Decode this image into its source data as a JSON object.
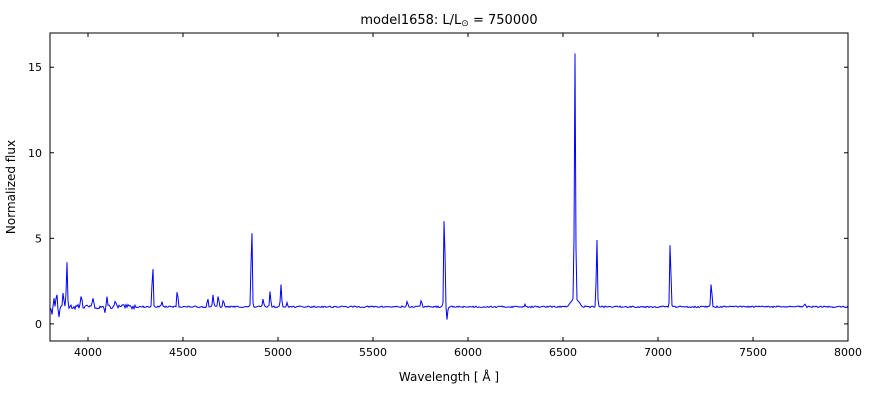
{
  "title": {
    "prefix": "model1658: L/L",
    "sub": "⊙",
    "suffix": " = 750000"
  },
  "chart_data": {
    "type": "line",
    "title": "model1658: L/L⊙ = 750000",
    "xlabel": "Wavelength [ Å ]",
    "ylabel": "Normalized flux",
    "xlim": [
      3800,
      8000
    ],
    "ylim": [
      -1,
      17
    ],
    "xticks": [
      4000,
      4500,
      5000,
      5500,
      6000,
      6500,
      7000,
      7500,
      8000
    ],
    "yticks": [
      0,
      5,
      10,
      15
    ],
    "line_color": "#0000ff",
    "grid": false,
    "legend": "none",
    "continuum": 1.0,
    "default_sigma": 3,
    "noise": {
      "seed": 13,
      "base_amplitude": 0.045,
      "blue_amplitude": 0.13,
      "blue_cutoff": 4250
    },
    "emission_lines": [
      {
        "wl": 3820,
        "peak": 0.5
      },
      {
        "wl": 3835,
        "peak": 0.7
      },
      {
        "wl": 3869,
        "peak": 0.8
      },
      {
        "wl": 3889,
        "peak": 2.6
      },
      {
        "wl": 3965,
        "peak": 0.6
      },
      {
        "wl": 4026,
        "peak": 0.5
      },
      {
        "wl": 4101,
        "peak": 0.6
      },
      {
        "wl": 4144,
        "peak": 0.3
      },
      {
        "wl": 4340,
        "peak": 2.2
      },
      {
        "wl": 4388,
        "peak": 0.3
      },
      {
        "wl": 4471,
        "peak": 0.85
      },
      {
        "wl": 4630,
        "peak": 0.45
      },
      {
        "wl": 4658,
        "peak": 0.7
      },
      {
        "wl": 4686,
        "peak": 0.6
      },
      {
        "wl": 4713,
        "peak": 0.35
      },
      {
        "wl": 4861,
        "peak": 4.3
      },
      {
        "wl": 4922,
        "peak": 0.45
      },
      {
        "wl": 4959,
        "peak": 0.9
      },
      {
        "wl": 5016,
        "peak": 1.3
      },
      {
        "wl": 5048,
        "peak": 0.25
      },
      {
        "wl": 5680,
        "peak": 0.3
      },
      {
        "wl": 5755,
        "peak": 0.35
      },
      {
        "wl": 5876,
        "peak": 5.0
      },
      {
        "wl": 6300,
        "peak": 0.15
      },
      {
        "wl": 6563,
        "peak": 14.8,
        "sigma": 3,
        "broad_peak": 0.5,
        "broad_sigma": 18
      },
      {
        "wl": 6678,
        "peak": 3.9
      },
      {
        "wl": 7065,
        "peak": 3.6
      },
      {
        "wl": 7281,
        "peak": 1.3
      },
      {
        "wl": 7772,
        "peak": 0.15
      }
    ],
    "absorption_lines": [
      {
        "wl": 3810,
        "depth": 0.45
      },
      {
        "wl": 3848,
        "depth": 0.6
      },
      {
        "wl": 4090,
        "depth": 0.35
      },
      {
        "wl": 5890,
        "depth": 0.75
      }
    ]
  }
}
